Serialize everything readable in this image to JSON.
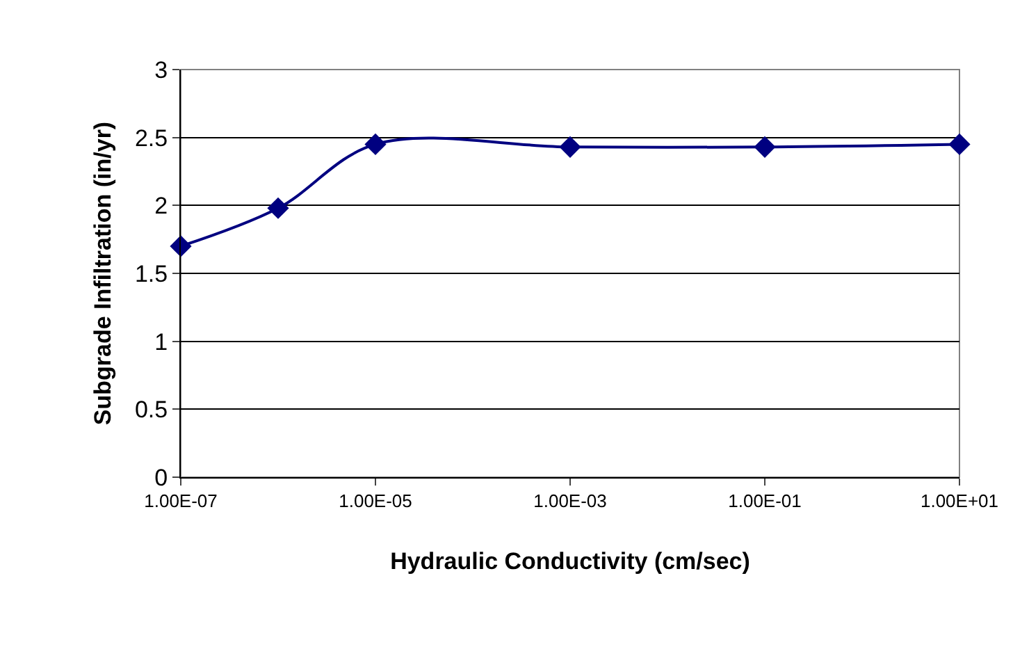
{
  "chart_data": {
    "type": "line",
    "xlabel": "Hydraulic Conductivity (cm/sec)",
    "ylabel": "Subgrade Infiltration (in/yr)",
    "x": [
      1e-07,
      1e-06,
      1e-05,
      0.001,
      0.1,
      10
    ],
    "series": [
      {
        "color": "#000080",
        "values": [
          1.7,
          1.98,
          2.45,
          2.43,
          2.43,
          2.45
        ]
      }
    ],
    "log": "x",
    "xlim": [
      1e-07,
      10
    ],
    "xticks": [
      {
        "value": 1e-07,
        "label": "1.00E-07"
      },
      {
        "value": 1e-05,
        "label": "1.00E-05"
      },
      {
        "value": 0.001,
        "label": "1.00E-03"
      },
      {
        "value": 0.1,
        "label": "1.00E-01"
      },
      {
        "value": 10,
        "label": "1.00E+01"
      }
    ],
    "ylim": [
      0,
      3
    ],
    "yticks": [
      0,
      0.5,
      1,
      1.5,
      2,
      2.5,
      3
    ],
    "grid": "y",
    "marker": "diamond",
    "line_style": "solid",
    "legend": false
  }
}
